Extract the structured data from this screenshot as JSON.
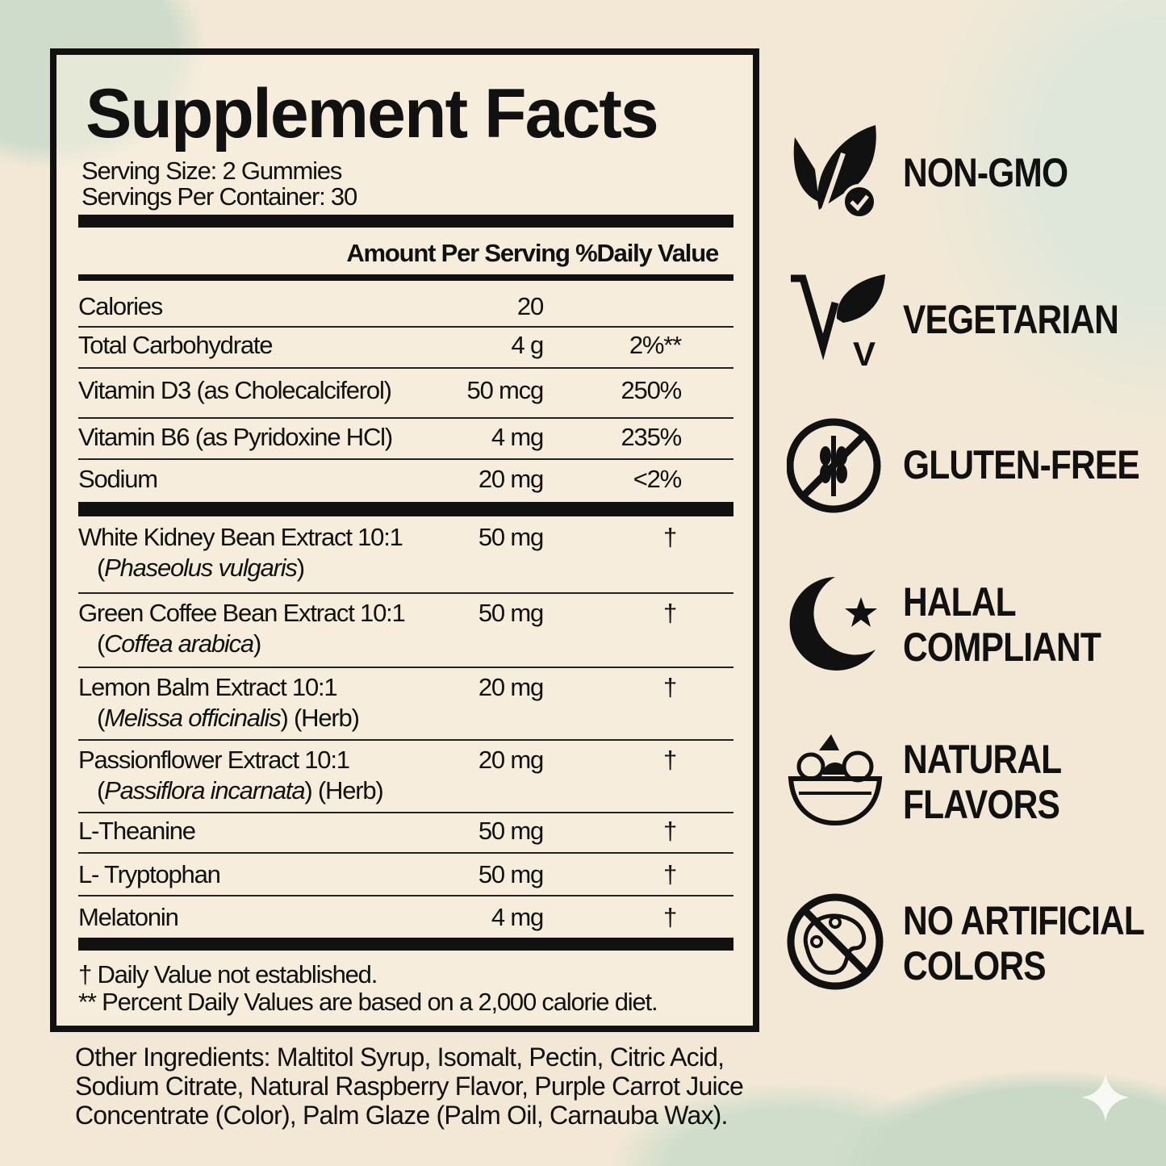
{
  "label": {
    "title": "Supplement Facts",
    "serving_size": "Serving Size: 2 Gummies",
    "servings_per_container": "Servings Per Container: 30",
    "header": "Amount Per Serving %Daily Value",
    "rows": [
      {
        "name": "Calories",
        "amount": "20",
        "dv": ""
      },
      {
        "name": "Total Carbohydrate",
        "amount": "4 g",
        "dv": "2%**"
      },
      {
        "name": "Vitamin D3 (as Cholecalciferol)",
        "amount": "50 mcg",
        "dv": "250%"
      },
      {
        "name": "Vitamin B6 (as Pyridoxine HCl)",
        "amount": "4 mg",
        "dv": "235%"
      },
      {
        "name": "Sodium",
        "amount": "20 mg",
        "dv": "<2%"
      }
    ],
    "blend": [
      {
        "name": "White Kidney Bean Extract 10:1",
        "latin": "Phaseolus vulgaris",
        "suffix": "",
        "amount": "50 mg",
        "dv": "†"
      },
      {
        "name": "Green Coffee Bean Extract 10:1",
        "latin": "Coffea arabica",
        "suffix": "",
        "amount": "50 mg",
        "dv": "†"
      },
      {
        "name": "Lemon Balm Extract 10:1",
        "latin": "Melissa officinalis",
        "suffix": " (Herb)",
        "amount": "20 mg",
        "dv": "†"
      },
      {
        "name": "Passionflower Extract 10:1",
        "latin": "Passiflora incarnata",
        "suffix": " (Herb)",
        "amount": "20 mg",
        "dv": "†"
      },
      {
        "name": "L-Theanine",
        "amount": "50 mg",
        "dv": "†"
      },
      {
        "name": "L- Tryptophan",
        "amount": "50 mg",
        "dv": "†"
      },
      {
        "name": "Melatonin",
        "amount": "4 mg",
        "dv": "†"
      }
    ],
    "footnote1": "† Daily Value not established.",
    "footnote2": "** Percent Daily Values are based on a 2,000 calorie diet."
  },
  "other_ingredients": "Other Ingredients: Maltitol Syrup, Isomalt, Pectin, Citric Acid, Sodium Citrate, Natural Raspberry Flavor, Purple Carrot Juice Concentrate (Color), Palm Glaze (Palm Oil, Carnauba Wax).",
  "badges": [
    {
      "icon": "leaf-check-icon",
      "line1": "NON-GMO",
      "line2": ""
    },
    {
      "icon": "vegetarian-leaf-icon",
      "line1": "VEGETARIAN",
      "line2": ""
    },
    {
      "icon": "no-wheat-icon",
      "line1": "GLUTEN-FREE",
      "line2": ""
    },
    {
      "icon": "crescent-star-icon",
      "line1": "HALAL",
      "line2": "COMPLIANT"
    },
    {
      "icon": "fruit-bowl-icon",
      "line1": "NATURAL",
      "line2": "FLAVORS"
    },
    {
      "icon": "no-palette-icon",
      "line1": "NO ARTIFICIAL",
      "line2": "COLORS"
    }
  ],
  "colors": {
    "background": "#f3e8d6",
    "accent_green": "#cfdccb",
    "ink": "#111111"
  }
}
